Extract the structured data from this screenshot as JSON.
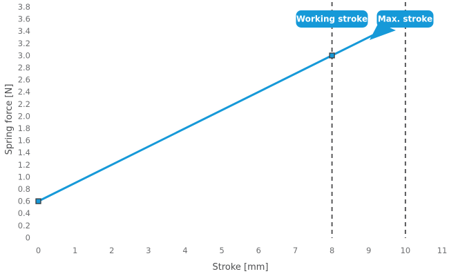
{
  "chart_data": {
    "type": "line",
    "title": "",
    "xlabel": "Stroke [mm]",
    "ylabel": "Spring force [N]",
    "xlim": [
      0,
      11
    ],
    "ylim": [
      0,
      3.8
    ],
    "xticks": [
      "0",
      "1",
      "2",
      "3",
      "4",
      "5",
      "6",
      "7",
      "8",
      "9",
      "10",
      "11"
    ],
    "yticks": [
      "0",
      "0.2",
      "0.4",
      "0.6",
      "0.8",
      "1.0",
      "1.2",
      "1.4",
      "1.6",
      "1.8",
      "2.0",
      "2.2",
      "2.4",
      "2.6",
      "2.8",
      "3.0",
      "3.2",
      "3.4",
      "3.6",
      "3.8"
    ],
    "series": [
      {
        "name": "Spring force",
        "x": [
          0,
          8,
          10
        ],
        "y": [
          0.6,
          3.0,
          3.6
        ]
      }
    ],
    "markers": [
      {
        "x": 0,
        "y": 0.6
      },
      {
        "x": 8,
        "y": 3.0
      }
    ],
    "annotations": [
      {
        "label": "Working stroke",
        "x": 8,
        "line_style": "dashed"
      },
      {
        "label": "Max. stroke",
        "x": 10,
        "line_style": "dashed"
      }
    ],
    "grid": false,
    "legend": false,
    "colors": {
      "line": "#1699D8",
      "badge_fill": "#1699D8",
      "badge_text": "#FFFFFF",
      "tick_text": "#6E6F71",
      "axis_title_text": "#4C4D4F",
      "dashed_line": "#58585A",
      "marker_stroke": "#3A3B3D",
      "background": "#FFFFFF"
    }
  }
}
